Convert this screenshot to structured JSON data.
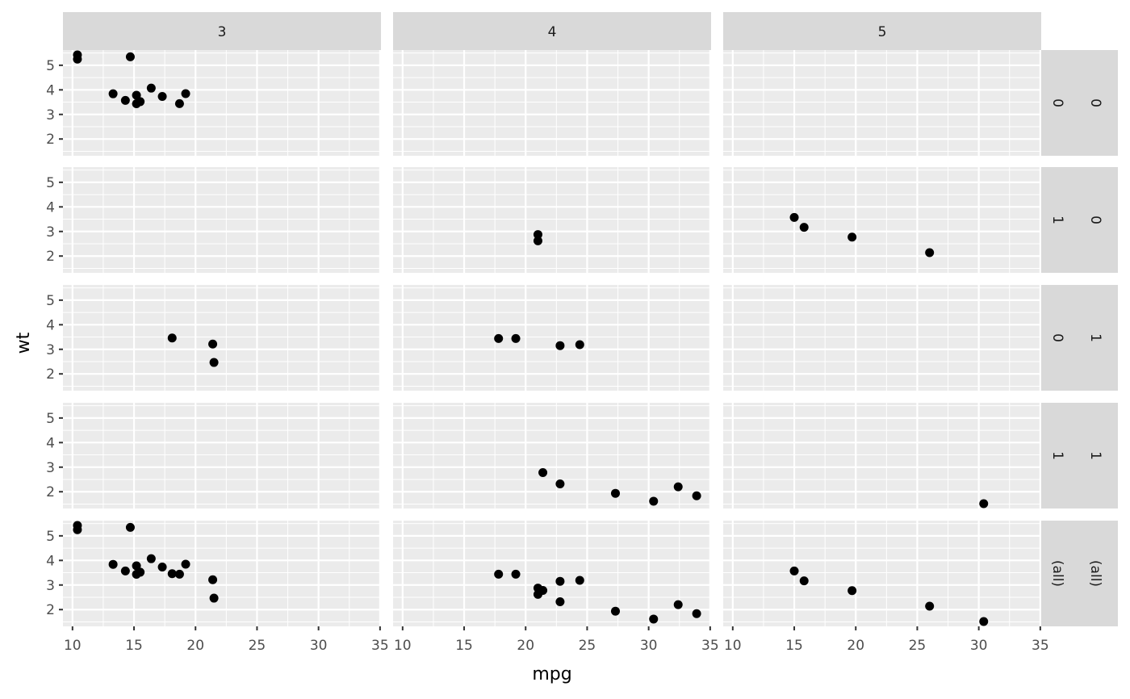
{
  "chart_data": {
    "type": "scatter",
    "title": "",
    "xlabel": "mpg",
    "ylabel": "wt",
    "xlim": [
      9.225,
      35.075
    ],
    "ylim": [
      1.3175,
      5.6195
    ],
    "x_ticks": [
      10,
      15,
      20,
      25,
      30,
      35
    ],
    "x_tick_labels": [
      "10",
      "15",
      "20",
      "25",
      "30",
      "35"
    ],
    "y_ticks": [
      2,
      3,
      4,
      5
    ],
    "y_tick_labels": [
      "2",
      "3",
      "4",
      "5"
    ],
    "grid": true,
    "facet_cols": {
      "variable": "gear",
      "labels": [
        "3",
        "4",
        "5"
      ],
      "values": [
        3,
        4,
        5
      ]
    },
    "facet_rows": [
      {
        "labels": [
          "0",
          "0"
        ],
        "vs": 0,
        "am": 0
      },
      {
        "labels": [
          "1",
          "0"
        ],
        "vs": 0,
        "am": 1
      },
      {
        "labels": [
          "0",
          "1"
        ],
        "vs": 1,
        "am": 0
      },
      {
        "labels": [
          "1",
          "1"
        ],
        "vs": 1,
        "am": 1
      },
      {
        "labels": [
          "(all)",
          "(all)"
        ],
        "vs": "all",
        "am": "all"
      }
    ],
    "point_fields": [
      "mpg",
      "wt",
      "vs",
      "am",
      "gear"
    ],
    "points": [
      [
        21.0,
        2.62,
        0,
        1,
        4
      ],
      [
        21.0,
        2.875,
        0,
        1,
        4
      ],
      [
        22.8,
        2.32,
        1,
        1,
        4
      ],
      [
        21.4,
        3.215,
        1,
        0,
        3
      ],
      [
        18.7,
        3.44,
        0,
        0,
        3
      ],
      [
        18.1,
        3.46,
        1,
        0,
        3
      ],
      [
        14.3,
        3.57,
        0,
        0,
        3
      ],
      [
        24.4,
        3.19,
        1,
        0,
        4
      ],
      [
        22.8,
        3.15,
        1,
        0,
        4
      ],
      [
        19.2,
        3.44,
        1,
        0,
        4
      ],
      [
        17.8,
        3.44,
        1,
        0,
        4
      ],
      [
        16.4,
        4.07,
        0,
        0,
        3
      ],
      [
        17.3,
        3.73,
        0,
        0,
        3
      ],
      [
        15.2,
        3.78,
        0,
        0,
        3
      ],
      [
        10.4,
        5.25,
        0,
        0,
        3
      ],
      [
        10.4,
        5.424,
        0,
        0,
        3
      ],
      [
        14.7,
        5.345,
        0,
        0,
        3
      ],
      [
        32.4,
        2.2,
        1,
        1,
        4
      ],
      [
        30.4,
        1.615,
        1,
        1,
        4
      ],
      [
        33.9,
        1.835,
        1,
        1,
        4
      ],
      [
        21.5,
        2.465,
        1,
        0,
        3
      ],
      [
        15.5,
        3.52,
        0,
        0,
        3
      ],
      [
        15.2,
        3.435,
        0,
        0,
        3
      ],
      [
        13.3,
        3.84,
        0,
        0,
        3
      ],
      [
        19.2,
        3.845,
        0,
        0,
        3
      ],
      [
        27.3,
        1.935,
        1,
        1,
        4
      ],
      [
        26.0,
        2.14,
        0,
        1,
        5
      ],
      [
        30.4,
        1.513,
        1,
        1,
        5
      ],
      [
        15.8,
        3.17,
        0,
        1,
        5
      ],
      [
        19.7,
        2.77,
        0,
        1,
        5
      ],
      [
        15.0,
        3.57,
        0,
        1,
        5
      ],
      [
        21.4,
        2.78,
        1,
        1,
        4
      ]
    ],
    "colors": {
      "panel": "#ebebeb",
      "strip": "#d9d9d9",
      "grid": "#ffffff",
      "point": "#000000"
    }
  }
}
